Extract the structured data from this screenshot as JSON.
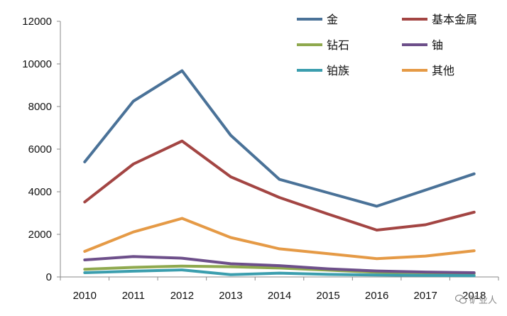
{
  "chart_data": {
    "type": "line",
    "categories": [
      "2010",
      "2011",
      "2012",
      "2013",
      "2014",
      "2015",
      "2016",
      "2017",
      "2018"
    ],
    "ylim": [
      0,
      12000
    ],
    "yticks": [
      "0",
      "2000",
      "4000",
      "6000",
      "8000",
      "10000",
      "12000"
    ],
    "grid": false,
    "legend_position": "top-right",
    "series": [
      {
        "name": "金",
        "color": "#4a7298",
        "values": [
          5400,
          8250,
          9680,
          6650,
          4580,
          3950,
          3320,
          4080,
          4840
        ]
      },
      {
        "name": "基本金属",
        "color": "#a34543",
        "values": [
          3520,
          5300,
          6380,
          4700,
          3730,
          2950,
          2200,
          2450,
          3040
        ]
      },
      {
        "name": "钻石",
        "color": "#8fa94e",
        "values": [
          360,
          450,
          510,
          480,
          420,
          320,
          220,
          200,
          160
        ]
      },
      {
        "name": "铀",
        "color": "#6d4f8a",
        "values": [
          800,
          960,
          880,
          620,
          530,
          380,
          280,
          230,
          200
        ]
      },
      {
        "name": "铂族",
        "color": "#3b9eae",
        "values": [
          200,
          270,
          330,
          110,
          180,
          120,
          90,
          70,
          60
        ]
      },
      {
        "name": "其他",
        "color": "#e59a46",
        "values": [
          1200,
          2110,
          2750,
          1850,
          1320,
          1090,
          860,
          980,
          1230
        ]
      }
    ]
  },
  "watermark": {
    "icon": "wechat-icon",
    "text": "矿业人"
  }
}
